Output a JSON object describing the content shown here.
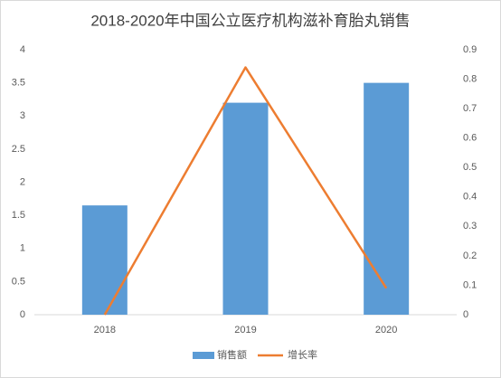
{
  "chart_data": {
    "type": "bar",
    "title": "2018-2020年中国公立医疗机构滋补育胎丸销售",
    "categories": [
      "2018",
      "2019",
      "2020"
    ],
    "series": [
      {
        "name": "销售额",
        "type": "bar",
        "color": "#5b9bd5",
        "values": [
          1.65,
          3.2,
          3.5
        ]
      },
      {
        "name": "增长率",
        "type": "line",
        "color": "#ed7d31",
        "values": [
          0,
          0.84,
          0.09
        ],
        "axis": "y2"
      }
    ],
    "ylim": [
      0,
      4
    ],
    "yticks": [
      0,
      0.5,
      1,
      1.5,
      2,
      2.5,
      3,
      3.5,
      4
    ],
    "y2lim": [
      0,
      0.9
    ],
    "y2ticks": [
      0,
      0.1,
      0.2,
      0.3,
      0.4,
      0.5,
      0.6,
      0.7,
      0.8,
      0.9
    ],
    "grid": false,
    "legend": "bottom"
  }
}
